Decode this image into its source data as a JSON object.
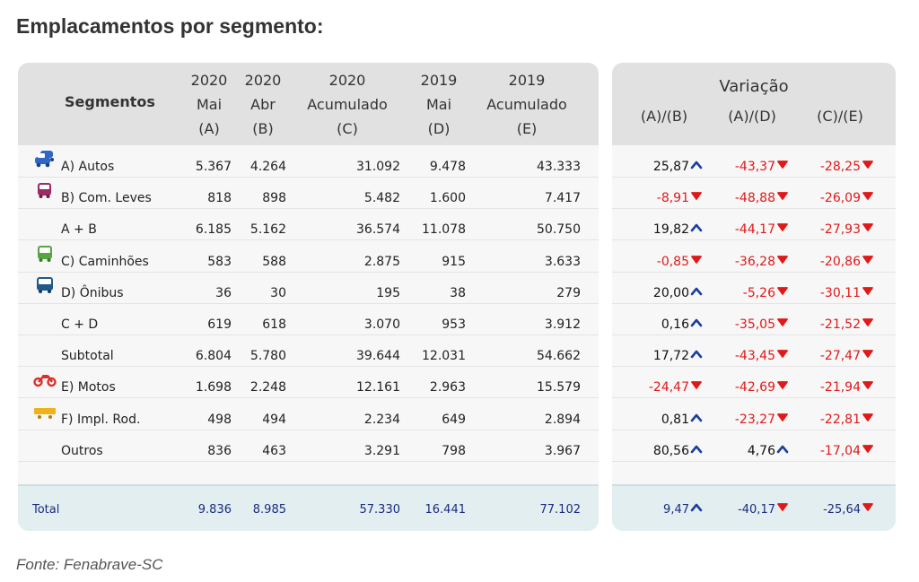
{
  "title": "Emplacamentos por segmento:",
  "source": "Fonte: Fenabrave-SC",
  "colors": {
    "up": "#1c3f9e",
    "down": "#e01919",
    "header_bg": "#e1e1e1",
    "total_bg": "#e3eef1",
    "total_text": "#1a2c80"
  },
  "left_header": {
    "segmentos": "Segmentos",
    "cols": [
      {
        "l1": "2020",
        "l2": "Mai",
        "l3": "(A)"
      },
      {
        "l1": "2020",
        "l2": "Abr",
        "l3": "(B)"
      },
      {
        "l1": "2020",
        "l2": "Acumulado",
        "l3": "(C)"
      },
      {
        "l1": "2019",
        "l2": "Mai",
        "l3": "(D)"
      },
      {
        "l1": "2019",
        "l2": "Acumulado",
        "l3": "(E)"
      }
    ]
  },
  "right_header": {
    "title": "Variação",
    "cols": [
      "(A)/(B)",
      "(A)/(D)",
      "(C)/(E)"
    ]
  },
  "rows": [
    {
      "label": "A) Autos",
      "icon": "car-icon",
      "a": "5.367",
      "b": "4.264",
      "c": "31.092",
      "d": "9.478",
      "e": "43.333",
      "v1": {
        "value": "25,87",
        "dir": "up"
      },
      "v2": {
        "value": "-43,37",
        "dir": "down"
      },
      "v3": {
        "value": "-28,25",
        "dir": "down"
      }
    },
    {
      "label": "B) Com. Leves",
      "icon": "van-icon",
      "a": "818",
      "b": "898",
      "c": "5.482",
      "d": "1.600",
      "e": "7.417",
      "v1": {
        "value": "-8,91",
        "dir": "down"
      },
      "v2": {
        "value": "-48,88",
        "dir": "down"
      },
      "v3": {
        "value": "-26,09",
        "dir": "down"
      }
    },
    {
      "label": "A + B",
      "icon": "",
      "a": "6.185",
      "b": "5.162",
      "c": "36.574",
      "d": "11.078",
      "e": "50.750",
      "v1": {
        "value": "19,82",
        "dir": "up"
      },
      "v2": {
        "value": "-44,17",
        "dir": "down"
      },
      "v3": {
        "value": "-27,93",
        "dir": "down"
      }
    },
    {
      "label": "C) Caminhões",
      "icon": "truck-icon",
      "a": "583",
      "b": "588",
      "c": "2.875",
      "d": "915",
      "e": "3.633",
      "v1": {
        "value": "-0,85",
        "dir": "down"
      },
      "v2": {
        "value": "-36,28",
        "dir": "down"
      },
      "v3": {
        "value": "-20,86",
        "dir": "down"
      }
    },
    {
      "label": "D) Ônibus",
      "icon": "bus-icon",
      "a": "36",
      "b": "30",
      "c": "195",
      "d": "38",
      "e": "279",
      "v1": {
        "value": "20,00",
        "dir": "up"
      },
      "v2": {
        "value": "-5,26",
        "dir": "down"
      },
      "v3": {
        "value": "-30,11",
        "dir": "down"
      }
    },
    {
      "label": "C + D",
      "icon": "",
      "a": "619",
      "b": "618",
      "c": "3.070",
      "d": "953",
      "e": "3.912",
      "v1": {
        "value": "0,16",
        "dir": "up"
      },
      "v2": {
        "value": "-35,05",
        "dir": "down"
      },
      "v3": {
        "value": "-21,52",
        "dir": "down"
      }
    },
    {
      "label": "Subtotal",
      "icon": "",
      "a": "6.804",
      "b": "5.780",
      "c": "39.644",
      "d": "12.031",
      "e": "54.662",
      "v1": {
        "value": "17,72",
        "dir": "up"
      },
      "v2": {
        "value": "-43,45",
        "dir": "down"
      },
      "v3": {
        "value": "-27,47",
        "dir": "down"
      }
    },
    {
      "label": "E) Motos",
      "icon": "motorcycle-icon",
      "a": "1.698",
      "b": "2.248",
      "c": "12.161",
      "d": "2.963",
      "e": "15.579",
      "v1": {
        "value": "-24,47",
        "dir": "down"
      },
      "v2": {
        "value": "-42,69",
        "dir": "down"
      },
      "v3": {
        "value": "-21,94",
        "dir": "down"
      }
    },
    {
      "label": "F) Impl. Rod.",
      "icon": "trailer-icon",
      "a": "498",
      "b": "494",
      "c": "2.234",
      "d": "649",
      "e": "2.894",
      "v1": {
        "value": "0,81",
        "dir": "up"
      },
      "v2": {
        "value": "-23,27",
        "dir": "down"
      },
      "v3": {
        "value": "-22,81",
        "dir": "down"
      }
    },
    {
      "label": "Outros",
      "icon": "",
      "a": "836",
      "b": "463",
      "c": "3.291",
      "d": "798",
      "e": "3.967",
      "v1": {
        "value": "80,56",
        "dir": "up"
      },
      "v2": {
        "value": "4,76",
        "dir": "up"
      },
      "v3": {
        "value": "-17,04",
        "dir": "down"
      }
    }
  ],
  "total": {
    "label": "Total",
    "a": "9.836",
    "b": "8.985",
    "c": "57.330",
    "d": "16.441",
    "e": "77.102",
    "v1": {
      "value": "9,47",
      "dir": "up"
    },
    "v2": {
      "value": "-40,17",
      "dir": "down"
    },
    "v3": {
      "value": "-25,64",
      "dir": "down"
    }
  }
}
